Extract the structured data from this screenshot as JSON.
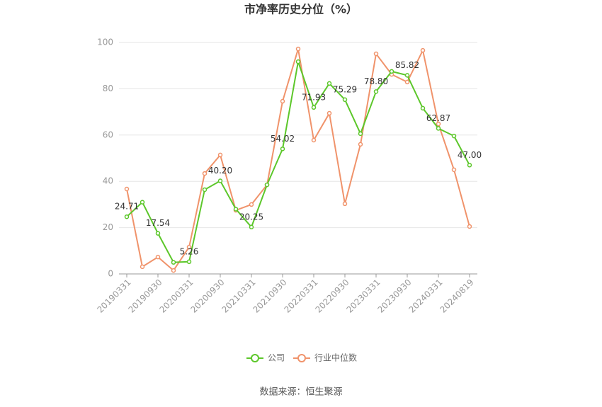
{
  "chart_data": {
    "type": "line",
    "title": "市净率历史分位（%）",
    "categories": [
      "20190331",
      null,
      "20190930",
      null,
      "20200331",
      null,
      "20200930",
      null,
      "20210331",
      null,
      "20210930",
      null,
      "20220331",
      null,
      "20220930",
      null,
      "20230331",
      null,
      "20230930",
      null,
      "20240331",
      null,
      "20240819"
    ],
    "series": [
      {
        "name": "公司",
        "color": "#5cc72a",
        "values": [
          24.71,
          31,
          17.54,
          5,
          5.26,
          36.4,
          40.2,
          28,
          20.25,
          38.5,
          54.02,
          91.7,
          71.93,
          82.3,
          75.29,
          60.6,
          78.8,
          87.5,
          85.82,
          71.6,
          62.87,
          59.6,
          47
        ],
        "value_labels": [
          "24.71",
          null,
          "17.54",
          null,
          "5.26",
          null,
          "40.20",
          null,
          "20.25",
          null,
          "54.02",
          null,
          "71.93",
          null,
          "75.29",
          null,
          "78.80",
          null,
          "85.82",
          null,
          "62.87",
          null,
          "47.00"
        ]
      },
      {
        "name": "行业中位数",
        "color": "#f0936b",
        "values": [
          36.7,
          3.1,
          7.3,
          1.5,
          11.6,
          43.4,
          51.4,
          27.5,
          30,
          38.5,
          74.6,
          97.2,
          57.8,
          69.4,
          30.3,
          56,
          95.1,
          86.2,
          82.9,
          96.6,
          64.8,
          45,
          20.5
        ]
      }
    ],
    "ylim": [
      0,
      100
    ],
    "yticks": [
      0,
      20,
      40,
      60,
      80,
      100
    ],
    "grid": true,
    "source": "数据来源：恒生聚源"
  }
}
